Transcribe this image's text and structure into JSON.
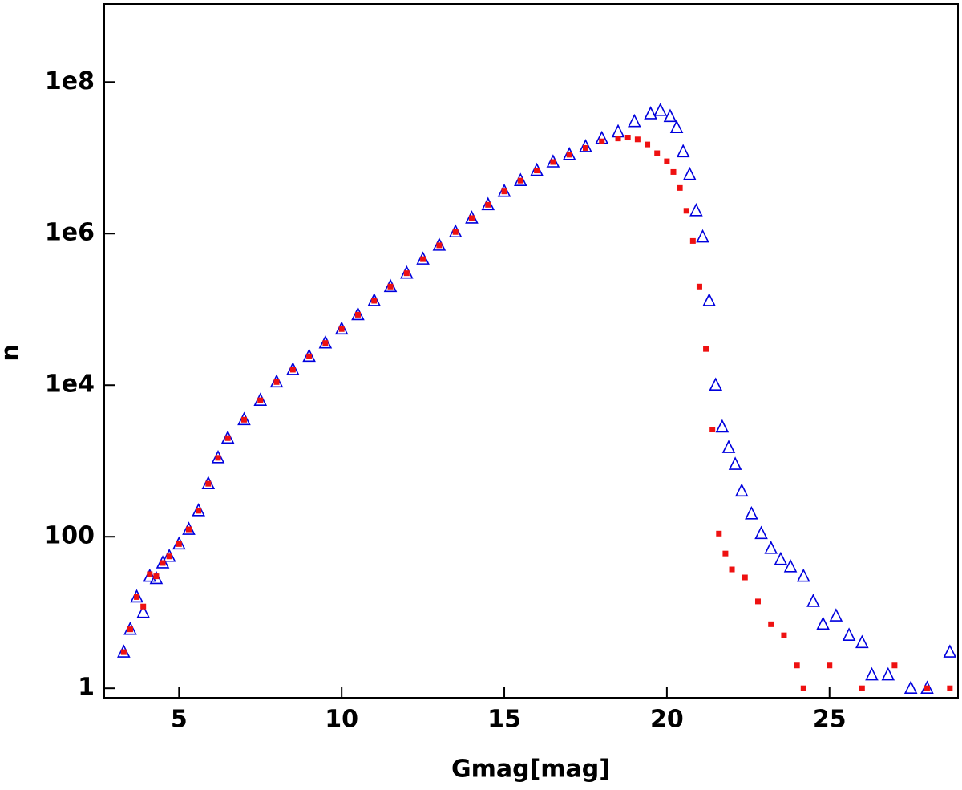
{
  "chart_data": {
    "type": "scatter",
    "x_label": "Gmag[mag]",
    "y_label": "n",
    "log_y": true,
    "xlim": [
      2.7,
      28.95
    ],
    "ylim": [
      0.75,
      1070000000
    ],
    "xticks": [
      5,
      10,
      15,
      20,
      25
    ],
    "yticks": [
      1,
      100,
      {
        "value": 10000,
        "label": "1e4"
      },
      {
        "value": 1000000,
        "label": "1e6"
      },
      {
        "value": 100000000,
        "label": "1e8"
      }
    ],
    "series": [
      {
        "color": "#0000dd",
        "marker": "triangle",
        "x": [
          3.3,
          3.5,
          3.7,
          3.9,
          4.1,
          4.3,
          4.5,
          4.7,
          5,
          5.3,
          5.6,
          5.9,
          6.2,
          6.5,
          7,
          7.5,
          8,
          8.5,
          9,
          9.5,
          10,
          10.5,
          11,
          11.5,
          12,
          12.5,
          13,
          13.5,
          14,
          14.5,
          15,
          15.5,
          16,
          16.5,
          17,
          17.5,
          18,
          18.5,
          19,
          19.5,
          19.8,
          20.1,
          20.3,
          20.5,
          20.7,
          20.9,
          21.1,
          21.3,
          21.5,
          21.7,
          21.9,
          22.1,
          22.3,
          22.6,
          22.9,
          23.2,
          23.5,
          23.8,
          24.2,
          24.5,
          24.8,
          25.2,
          25.6,
          26,
          26.3,
          26.8,
          27.5,
          28,
          28.7
        ],
        "values": [
          3,
          6,
          16,
          10,
          30,
          28,
          45,
          55,
          80,
          125,
          220,
          500,
          1100,
          2000,
          3500,
          6300,
          11000,
          16000,
          24000,
          36000,
          55000,
          85000,
          130000,
          200000,
          300000,
          460000,
          700000,
          1050000,
          1600000,
          2400000,
          3600000,
          5000000,
          6800000,
          8800000,
          11000000,
          14000000,
          18000000,
          22000000,
          30000000,
          38000000,
          42000000,
          35000000,
          25000000,
          12000000,
          6000000,
          2000000,
          900000,
          130000,
          10000,
          2800,
          1500,
          900,
          400,
          200,
          110,
          70,
          50,
          40,
          30,
          14,
          7,
          9,
          5,
          4,
          1.5,
          1.5,
          1,
          1,
          3
        ]
      },
      {
        "color": "#ee1111",
        "marker": "square",
        "x": [
          3.3,
          3.5,
          3.7,
          3.9,
          4.1,
          4.3,
          4.5,
          4.7,
          5,
          5.3,
          5.6,
          5.9,
          6.2,
          6.5,
          7,
          7.5,
          8,
          8.5,
          9,
          9.5,
          10,
          10.5,
          11,
          11.5,
          12,
          12.5,
          13,
          13.5,
          14,
          14.5,
          15,
          15.5,
          16,
          16.5,
          17,
          17.5,
          18,
          18.5,
          18.8,
          19.1,
          19.4,
          19.7,
          20,
          20.2,
          20.4,
          20.6,
          20.8,
          21,
          21.2,
          21.4,
          21.6,
          21.8,
          22,
          22.4,
          22.8,
          23.2,
          23.6,
          24,
          24.2,
          25,
          26,
          27,
          28,
          28.7
        ],
        "values": [
          3,
          6,
          16,
          12,
          32,
          30,
          45,
          55,
          80,
          125,
          220,
          500,
          1100,
          2000,
          3500,
          6300,
          11000,
          16000,
          24000,
          36000,
          55000,
          85000,
          130000,
          200000,
          300000,
          460000,
          700000,
          1050000,
          1600000,
          2400000,
          3600000,
          5000000,
          6800000,
          8800000,
          11000000,
          13500000,
          16500000,
          18000000,
          18500000,
          17500000,
          15000000,
          11500000,
          9000000,
          6500000,
          4000000,
          2000000,
          800000,
          200000,
          30000,
          2600,
          110,
          60,
          37,
          29,
          14,
          7,
          5,
          2,
          1,
          2,
          1,
          2,
          1,
          1
        ]
      }
    ]
  }
}
